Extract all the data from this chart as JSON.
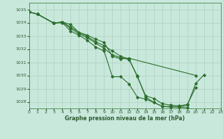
{
  "xlabel": "Graphe pression niveau de la mer (hPa)",
  "bg_color": "#c8e8dc",
  "line_color": "#2d6e2d",
  "grid_color": "#a8c8b8",
  "text_color": "#2d5a2d",
  "xlim": [
    0,
    23
  ],
  "ylim": [
    1027.5,
    1035.5
  ],
  "yticks": [
    1028,
    1029,
    1030,
    1031,
    1032,
    1033,
    1034,
    1035
  ],
  "xticks": [
    0,
    1,
    2,
    3,
    4,
    5,
    6,
    7,
    8,
    9,
    10,
    11,
    12,
    13,
    14,
    15,
    16,
    17,
    18,
    19,
    20,
    21,
    22,
    23
  ],
  "line1_x": [
    0,
    1,
    3,
    4,
    5,
    6,
    7,
    8,
    9,
    10,
    11,
    12,
    20
  ],
  "line1_y": [
    1034.8,
    1034.65,
    1033.95,
    1034.05,
    1033.85,
    1033.25,
    1033.05,
    1032.75,
    1032.5,
    1031.45,
    1031.25,
    1031.3,
    1030.0
  ],
  "line2_x": [
    0,
    1,
    3,
    4,
    5,
    6,
    7,
    8,
    9,
    10,
    11,
    12,
    13,
    14,
    15,
    16,
    17,
    18,
    19
  ],
  "line2_y": [
    1034.8,
    1034.65,
    1033.95,
    1034.05,
    1033.55,
    1033.15,
    1032.85,
    1032.45,
    1032.05,
    1031.55,
    1031.35,
    1031.2,
    1029.95,
    1028.35,
    1027.95,
    1027.65,
    1027.6,
    1027.6,
    1027.55
  ],
  "line3_x": [
    0,
    1,
    3,
    4,
    5,
    6,
    7,
    8,
    9,
    10,
    11,
    12,
    13,
    14,
    15,
    16,
    17,
    18,
    19,
    20,
    21
  ],
  "line3_y": [
    1034.8,
    1034.65,
    1033.95,
    1034.0,
    1033.35,
    1033.05,
    1032.65,
    1032.15,
    1031.85,
    1029.9,
    1029.9,
    1029.35,
    1028.35,
    1028.2,
    1027.95,
    1027.65,
    1027.65,
    1027.6,
    1027.75,
    1029.4,
    1030.05
  ],
  "line4_x": [
    0,
    1,
    3,
    4,
    5,
    6,
    7,
    8,
    9,
    10,
    11,
    12,
    13,
    14,
    15,
    16,
    17,
    18,
    19,
    20
  ],
  "line4_y": [
    1034.8,
    1034.65,
    1033.95,
    1034.05,
    1033.65,
    1033.25,
    1032.95,
    1032.55,
    1032.25,
    1031.85,
    1031.45,
    1031.25,
    1029.9,
    1028.45,
    1028.25,
    1027.85,
    1027.75,
    1027.7,
    1027.8,
    1029.1
  ],
  "figsize": [
    3.2,
    2.0
  ],
  "dpi": 100
}
